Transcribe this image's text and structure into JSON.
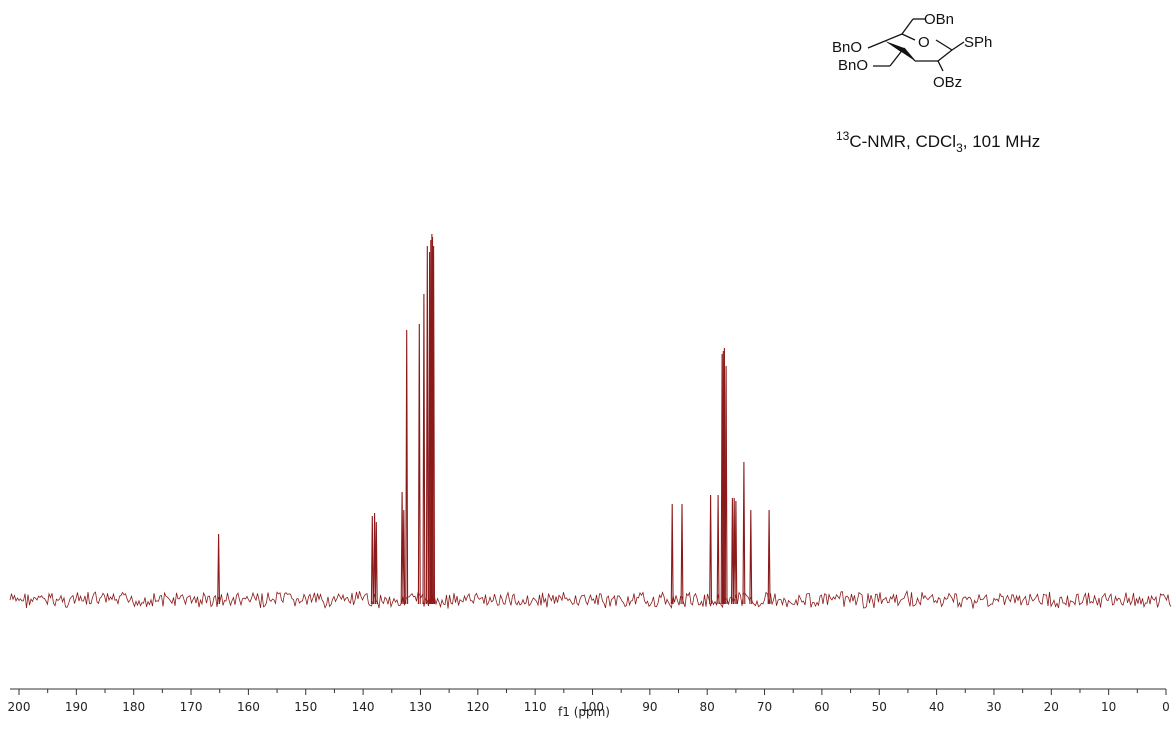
{
  "chart_data": {
    "type": "line",
    "xlabel": "f1 (ppm)",
    "xlim": [
      200,
      0
    ],
    "x_reversed": true,
    "grid": false,
    "x_ticks": [
      200,
      190,
      180,
      170,
      160,
      150,
      140,
      130,
      120,
      110,
      100,
      90,
      80,
      70,
      60,
      50,
      40,
      30,
      20,
      10,
      0
    ],
    "x_tick_labels": [
      "200",
      "190",
      "180",
      "170",
      "160",
      "150",
      "140",
      "130",
      "120",
      "110",
      "100",
      "90",
      "80",
      "70",
      "60",
      "50",
      "40",
      "30",
      "20",
      "10",
      "0"
    ],
    "series": [
      {
        "color": "#8b1a1a",
        "peaks_ppm": [
          165.2,
          138.4,
          138.0,
          137.7,
          133.2,
          132.9,
          132.4,
          130.2,
          129.4,
          128.8,
          128.4,
          128.2,
          128.0,
          127.9,
          127.7,
          86.1,
          84.4,
          79.4,
          78.1,
          77.4,
          77.2,
          77.0,
          76.7,
          75.6,
          75.3,
          75.0,
          73.6,
          72.4,
          69.2
        ],
        "relative_intensity": [
          0.22,
          0.28,
          0.29,
          0.26,
          0.36,
          0.3,
          0.9,
          0.92,
          1.02,
          1.18,
          1.16,
          1.2,
          1.22,
          1.21,
          1.18,
          0.32,
          0.32,
          0.35,
          0.35,
          0.82,
          0.83,
          0.84,
          0.78,
          0.34,
          0.34,
          0.33,
          0.46,
          0.3,
          0.3
        ]
      }
    ]
  },
  "annotation": {
    "nucleus_sup": "13",
    "nucleus": "C-NMR, CDCl",
    "solvent_sub": "3",
    "freq": ", 101 MHz"
  },
  "structure_labels": {
    "obn_top": "OBn",
    "bno_upper": "BnO",
    "bno_lower": "BnO",
    "ring_o": "O",
    "sph": "SPh",
    "obz": "OBz"
  }
}
